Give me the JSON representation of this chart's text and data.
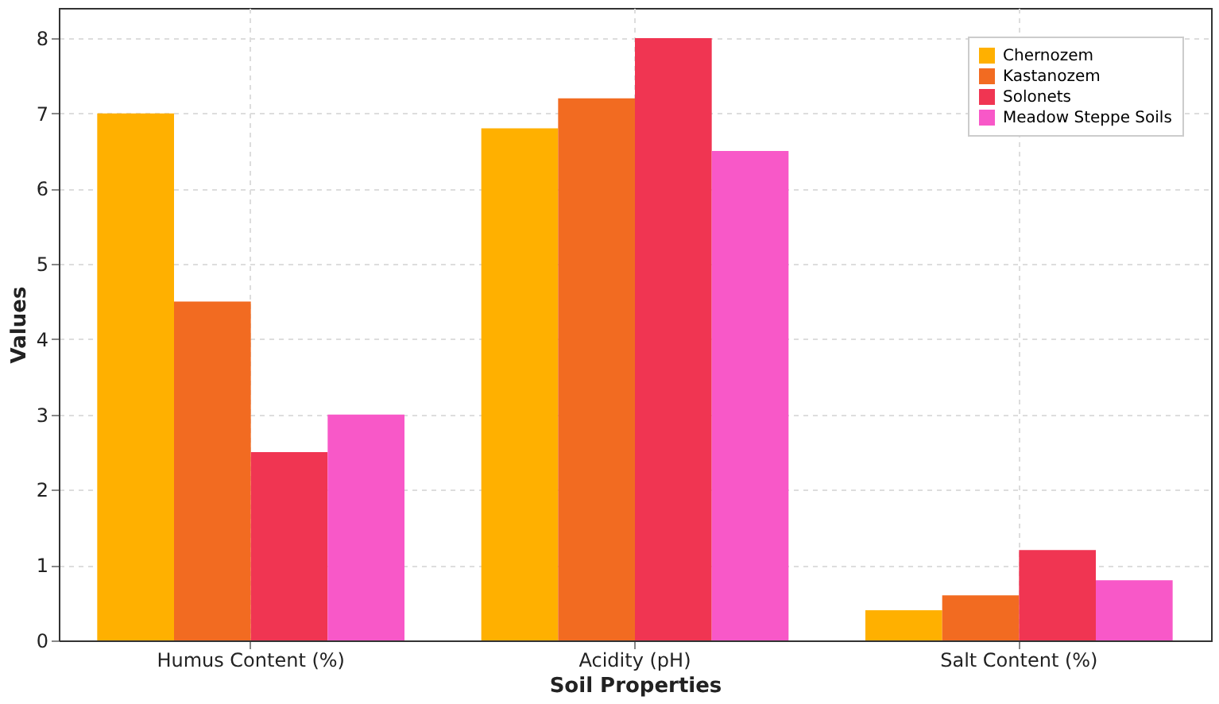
{
  "chart_data": {
    "type": "bar",
    "xlabel": "Soil Properties",
    "ylabel": "Values",
    "categories": [
      "Humus Content (%)",
      "Acidity (pH)",
      "Salt Content (%)"
    ],
    "series": [
      {
        "name": "Chernozem",
        "color": "#ffb000",
        "values": [
          7,
          6.8,
          0.4
        ]
      },
      {
        "name": "Kastanozem",
        "color": "#f26b21",
        "values": [
          4.5,
          7.2,
          0.6
        ]
      },
      {
        "name": "Solonets",
        "color": "#f03552",
        "values": [
          2.5,
          8,
          1.2
        ]
      },
      {
        "name": "Meadow Steppe Soils",
        "color": "#f858c8",
        "values": [
          3,
          6.5,
          0.8
        ]
      }
    ],
    "ylim": [
      0,
      8.4
    ],
    "yticks": [
      0,
      1,
      2,
      3,
      4,
      5,
      6,
      7,
      8
    ],
    "grid": true,
    "legend": "top right"
  }
}
